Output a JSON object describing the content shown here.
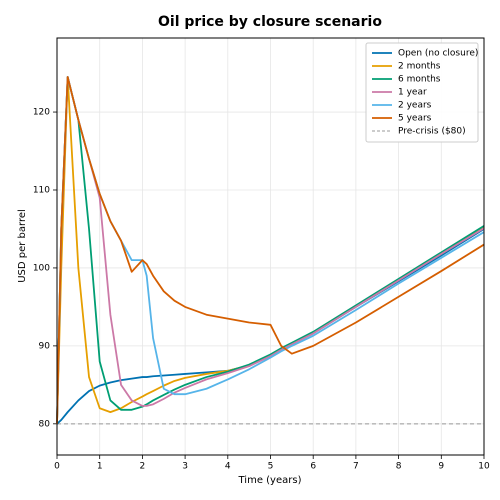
{
  "chart_data": {
    "type": "line",
    "title": "Oil price by closure scenario",
    "x_label": "Time (years)",
    "y_label": "USD per barrel",
    "x": [
      0,
      0.1,
      0.25,
      0.5,
      0.75,
      1,
      1.25,
      1.5,
      1.75,
      2,
      2.1,
      2.25,
      2.5,
      2.75,
      3,
      3.5,
      4,
      4.5,
      5,
      5.25,
      5.5,
      6,
      7,
      8,
      9,
      10
    ],
    "series": [
      {
        "name": "Open (no closure)",
        "color": "#0072b2",
        "values": [
          80,
          80.5,
          81.5,
          83,
          84.2,
          84.9,
          85.3,
          85.6,
          85.8,
          86,
          86,
          86.1,
          86.2,
          86.3,
          86.4,
          86.6,
          86.8,
          87.5,
          88.8,
          89.6,
          90.3,
          91.6,
          95,
          98.3,
          101.6,
          105
        ]
      },
      {
        "name": "2 months",
        "color": "#e69f00",
        "values": [
          80,
          100,
          124.5,
          100,
          86,
          82,
          81.5,
          82,
          82.8,
          83.5,
          83.8,
          84.2,
          84.9,
          85.5,
          85.9,
          86.4,
          86.8,
          87.5,
          88.8,
          89.6,
          90.3,
          91.7,
          95.1,
          98.5,
          101.8,
          105.2
        ]
      },
      {
        "name": "6 months",
        "color": "#009e73",
        "values": [
          80,
          105,
          124.5,
          119,
          105,
          88,
          83,
          81.8,
          81.8,
          82.2,
          82.5,
          83,
          83.7,
          84.4,
          85,
          86,
          86.7,
          87.6,
          88.9,
          89.7,
          90.4,
          91.8,
          95.2,
          98.6,
          102,
          105.4
        ]
      },
      {
        "name": "1 year",
        "color": "#cc79a7",
        "values": [
          80,
          105,
          124.5,
          119,
          114,
          109,
          94,
          85,
          83,
          82.3,
          82.3,
          82.5,
          83.2,
          84,
          84.6,
          85.7,
          86.5,
          87.4,
          88.7,
          89.5,
          90.2,
          91.6,
          95,
          98.4,
          101.8,
          105.1
        ]
      },
      {
        "name": "2 years",
        "color": "#56b4e9",
        "values": [
          80,
          105,
          124.5,
          119,
          114,
          109.5,
          106,
          103.5,
          101,
          101,
          99,
          91,
          84.5,
          83.8,
          83.8,
          84.5,
          85.7,
          87,
          88.5,
          89.3,
          90,
          91.3,
          94.6,
          98,
          101.3,
          104.6
        ]
      },
      {
        "name": "5 years",
        "color": "#d55e00",
        "values": [
          80,
          105,
          124.5,
          119,
          114,
          109.5,
          106,
          103.5,
          99.5,
          101,
          100.5,
          99,
          97,
          95.8,
          95,
          94,
          93.5,
          93,
          92.7,
          90,
          89,
          90,
          93,
          96.3,
          99.6,
          103
        ]
      }
    ],
    "hlines": [
      {
        "name": "Pre-crisis ($80)",
        "value": 80,
        "color": "#999999"
      }
    ],
    "xlim": [
      0,
      10
    ],
    "ylim": [
      76,
      129.5
    ],
    "xticks": [
      0,
      1,
      2,
      3,
      4,
      5,
      6,
      7,
      8,
      9,
      10
    ],
    "yticks": [
      80,
      90,
      100,
      110,
      120
    ],
    "grid": true,
    "legend": "upper-right"
  }
}
